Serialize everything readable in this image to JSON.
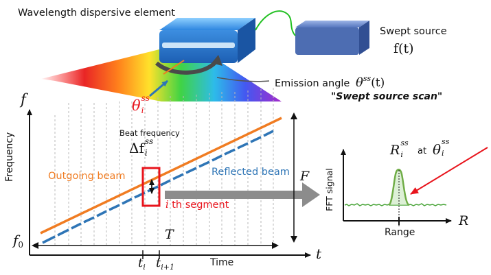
{
  "labels": {
    "wavelength_element": "Wavelength dispersive element",
    "swept_source_line1": "Swept source",
    "swept_source_func": "f(t)",
    "emission_angle_text": "Emission angle",
    "emission_angle_symbol": "θ",
    "emission_angle_sup": "ss",
    "emission_angle_arg": "(t)",
    "swept_source_scan": "\"Swept source scan\"",
    "theta_symbol": "θ",
    "theta_sup": "ss",
    "theta_sub": "i",
    "axis_f": "f",
    "frequency": "Frequency",
    "beat_frequency": "Beat frequency",
    "delta_f": "Δf",
    "delta_sup": "ss",
    "delta_sub": "i",
    "outgoing_beam": "Outgoing beam",
    "reflected_beam": "Reflected beam",
    "segment_i": "i",
    "segment_text": " th segment",
    "big_F": "F",
    "f0_main": "f",
    "f0_sub": "0",
    "big_T": "T",
    "t_i_main": "t",
    "t_i_sub": "i",
    "t_i1_main": "t",
    "t_i1_sub": "i+1",
    "time": "Time",
    "axis_t": "t",
    "fft_signal": "FFT signal",
    "R_main": "R",
    "R_sup": "ss",
    "R_sub": "i",
    "at": "at",
    "theta2_main": "θ",
    "theta2_sup": "ss",
    "theta2_sub": "i",
    "axis_R": "R",
    "range": "Range"
  },
  "colors": {
    "outgoing": "#f07c22",
    "reflected": "#2e75b6",
    "segment_box": "#e8141c",
    "red_text": "#e8141c",
    "peak": "#70ad47",
    "arrow_gray": "#8c8c8c",
    "device_blue": "#2f7fd6",
    "source_box": "#4f6fb0",
    "fiber": "#22c022"
  },
  "icons": {
    "dispersive_element": "blue-box-device",
    "swept_source": "blue-box-device",
    "rotation": "curved-arrow"
  }
}
